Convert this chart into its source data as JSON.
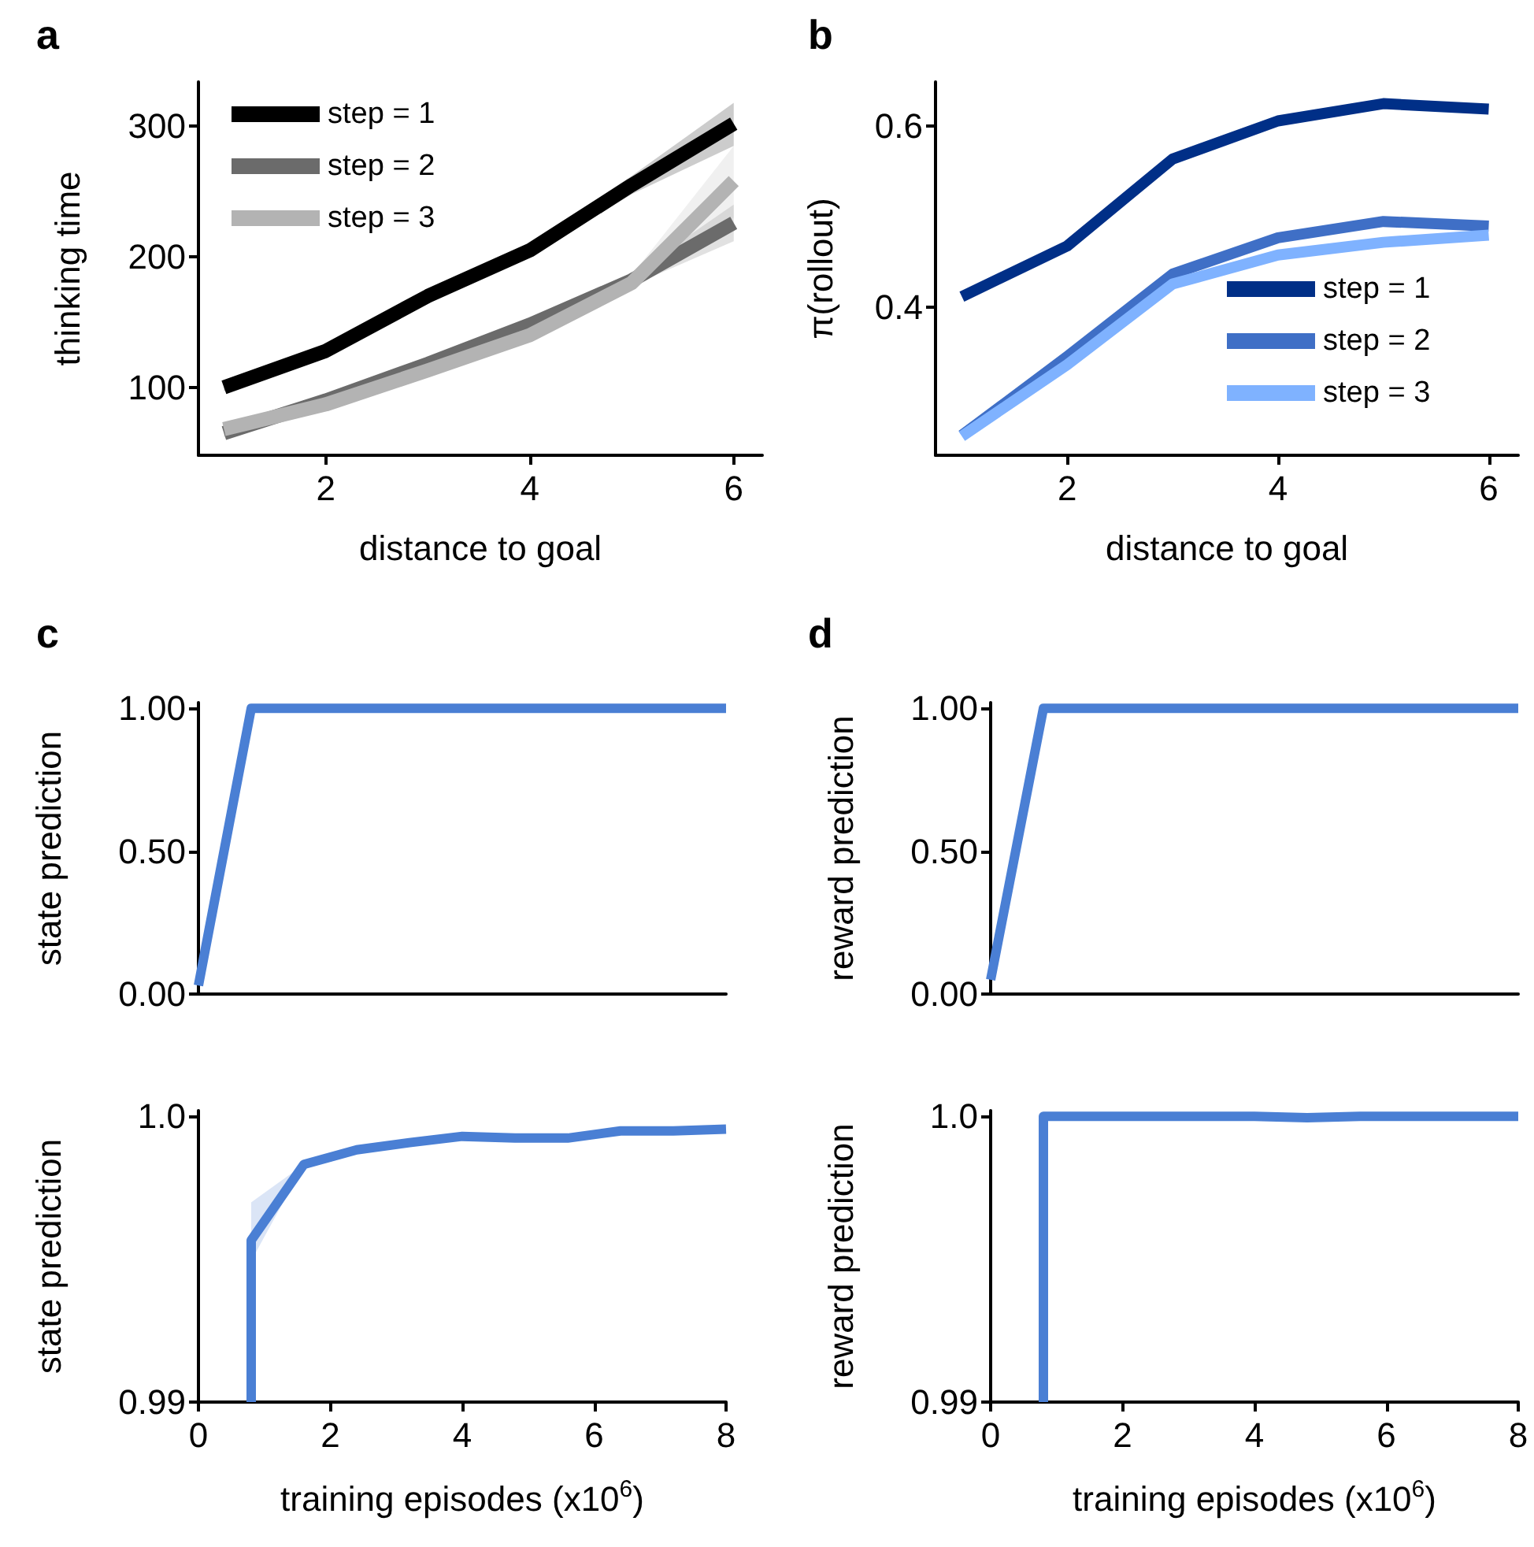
{
  "chart_data": [
    {
      "type": "line",
      "title": "a",
      "xlabel": "distance to goal",
      "ylabel": "thinking time",
      "x": [
        1,
        2,
        3,
        4,
        5,
        6
      ],
      "xlim": [
        0.75,
        6.28
      ],
      "xticks": [
        2,
        4,
        6
      ],
      "ylim": [
        48,
        334
      ],
      "yticks": [
        100,
        200,
        300
      ],
      "grid": false,
      "legend": "top left",
      "marker": "none",
      "line_style": "solid",
      "series": [
        {
          "name": "step = 1",
          "color": "#000000",
          "values": [
            100,
            128,
            170,
            205,
            255,
            302
          ],
          "lower": [
            97,
            125,
            166,
            200,
            248,
            285
          ],
          "upper": [
            103,
            131,
            174,
            210,
            262,
            318
          ]
        },
        {
          "name": "step = 2",
          "color": "#6b6b6b",
          "values": [
            65,
            90,
            118,
            148,
            182,
            226
          ],
          "lower": [
            62,
            87,
            115,
            144,
            178,
            212
          ],
          "upper": [
            68,
            93,
            121,
            152,
            186,
            240
          ]
        },
        {
          "name": "step = 3",
          "color": "#b3b3b3",
          "values": [
            68,
            87,
            113,
            140,
            180,
            258
          ],
          "lower": [
            65,
            84,
            110,
            136,
            174,
            230
          ],
          "upper": [
            71,
            90,
            116,
            144,
            186,
            285
          ]
        }
      ]
    },
    {
      "type": "line",
      "title": "b",
      "xlabel": "distance to goal",
      "ylabel": "π(rollout)",
      "x": [
        1,
        2,
        3,
        4,
        5,
        6
      ],
      "xlim": [
        0.75,
        6.28
      ],
      "xticks": [
        2,
        4,
        6
      ],
      "ylim": [
        0.237,
        0.649
      ],
      "yticks": [
        0.4,
        0.6
      ],
      "grid": false,
      "legend": "bottom right",
      "marker": "none",
      "line_style": "solid",
      "series": [
        {
          "name": "step = 1",
          "color": "#002f87",
          "values": [
            0.412,
            0.468,
            0.564,
            0.606,
            0.625,
            0.619
          ]
        },
        {
          "name": "step = 2",
          "color": "#3f6fc6",
          "values": [
            0.259,
            0.346,
            0.437,
            0.477,
            0.495,
            0.49
          ]
        },
        {
          "name": "step = 3",
          "color": "#7fb2ff",
          "values": [
            0.258,
            0.337,
            0.426,
            0.458,
            0.472,
            0.48
          ]
        }
      ]
    },
    {
      "type": "line",
      "title": "c",
      "ylabel": "state prediction",
      "x": [
        0,
        0.8,
        1.6,
        2.4,
        3.2,
        4.0,
        4.8,
        5.6,
        6.4,
        7.2,
        8.0
      ],
      "xlim": [
        0,
        8
      ],
      "ylim": [
        0,
        1.02
      ],
      "yticks": [
        {
          "value": 0,
          "label": "0.00"
        },
        {
          "value": 0.5,
          "label": "0.50"
        },
        {
          "value": 1,
          "label": "1.00"
        }
      ],
      "tick_labels": "y",
      "grid": false,
      "legend": false,
      "marker": "none",
      "line_style": "solid",
      "series": [
        {
          "color": "#4a7fd4",
          "values": [
            0.03,
            1.0,
            1.0,
            1.0,
            1.0,
            1.0,
            1.0,
            1.0,
            1.0,
            1.0,
            1.0
          ]
        }
      ]
    },
    {
      "type": "line",
      "xlabel": "training episodes (x10$^{6}$)",
      "ylabel": "state prediction",
      "x": [
        0.8,
        0.8,
        1.6,
        2.4,
        3.2,
        4.0,
        4.8,
        5.6,
        6.4,
        7.2,
        8.0
      ],
      "xlim": [
        0,
        8
      ],
      "xticks": [
        0,
        2,
        4,
        6,
        8
      ],
      "ylim": [
        0.99,
        1.0002
      ],
      "yticks": [
        0.99,
        {
          "value": 1,
          "label": "1.0"
        }
      ],
      "grid": false,
      "legend": false,
      "marker": "none",
      "line_style": "solid",
      "series": [
        {
          "color": "#4a7fd4",
          "values": [
            0.99,
            0.99566,
            0.99832,
            0.99883,
            0.99908,
            0.9993,
            0.99924,
            0.99924,
            0.99949,
            0.99949,
            0.99955
          ],
          "lower": [
            0.99,
            0.99494,
            0.99832,
            0.99883,
            0.99908,
            0.9993,
            0.99924,
            0.99924,
            0.99949,
            0.99949,
            0.99955
          ],
          "upper": [
            0.99,
            0.99699,
            0.99832,
            0.99883,
            0.99908,
            0.9993,
            0.99924,
            0.99924,
            0.99949,
            0.99949,
            0.99955
          ]
        }
      ]
    },
    {
      "type": "line",
      "title": "d",
      "ylabel": "reward prediction",
      "x": [
        0,
        0.8,
        1.6,
        2.4,
        3.2,
        4.0,
        4.8,
        5.6,
        6.4,
        7.2,
        8.0
      ],
      "xlim": [
        0,
        8
      ],
      "ylim": [
        0,
        1.02
      ],
      "yticks": [
        {
          "value": 0,
          "label": "0.00"
        },
        {
          "value": 0.5,
          "label": "0.50"
        },
        {
          "value": 1,
          "label": "1.00"
        }
      ],
      "tick_labels": "y",
      "grid": false,
      "legend": false,
      "marker": "none",
      "line_style": "solid",
      "series": [
        {
          "color": "#4a7fd4",
          "values": [
            0.05,
            1.0,
            1.0,
            1.0,
            1.0,
            1.0,
            1.0,
            1.0,
            1.0,
            1.0,
            1.0
          ]
        }
      ]
    },
    {
      "type": "line",
      "xlabel": "training episodes (x10$^{6}$)",
      "ylabel": "reward prediction",
      "x": [
        0.8,
        0.8,
        1.6,
        2.4,
        3.2,
        4.0,
        4.8,
        5.6,
        6.4,
        7.2,
        8.0
      ],
      "xlim": [
        0,
        8
      ],
      "xticks": [
        0,
        2,
        4,
        6,
        8
      ],
      "ylim": [
        0.99,
        1.0002
      ],
      "yticks": [
        0.99,
        {
          "value": 1,
          "label": "1.0"
        }
      ],
      "grid": false,
      "legend": false,
      "marker": "none",
      "line_style": "solid",
      "series": [
        {
          "color": "#4a7fd4",
          "values": [
            0.99,
            1.0,
            1.0,
            1.0,
            1.0,
            1.0,
            0.99995,
            1.0,
            1.0,
            1.0,
            1.0
          ]
        }
      ]
    }
  ]
}
